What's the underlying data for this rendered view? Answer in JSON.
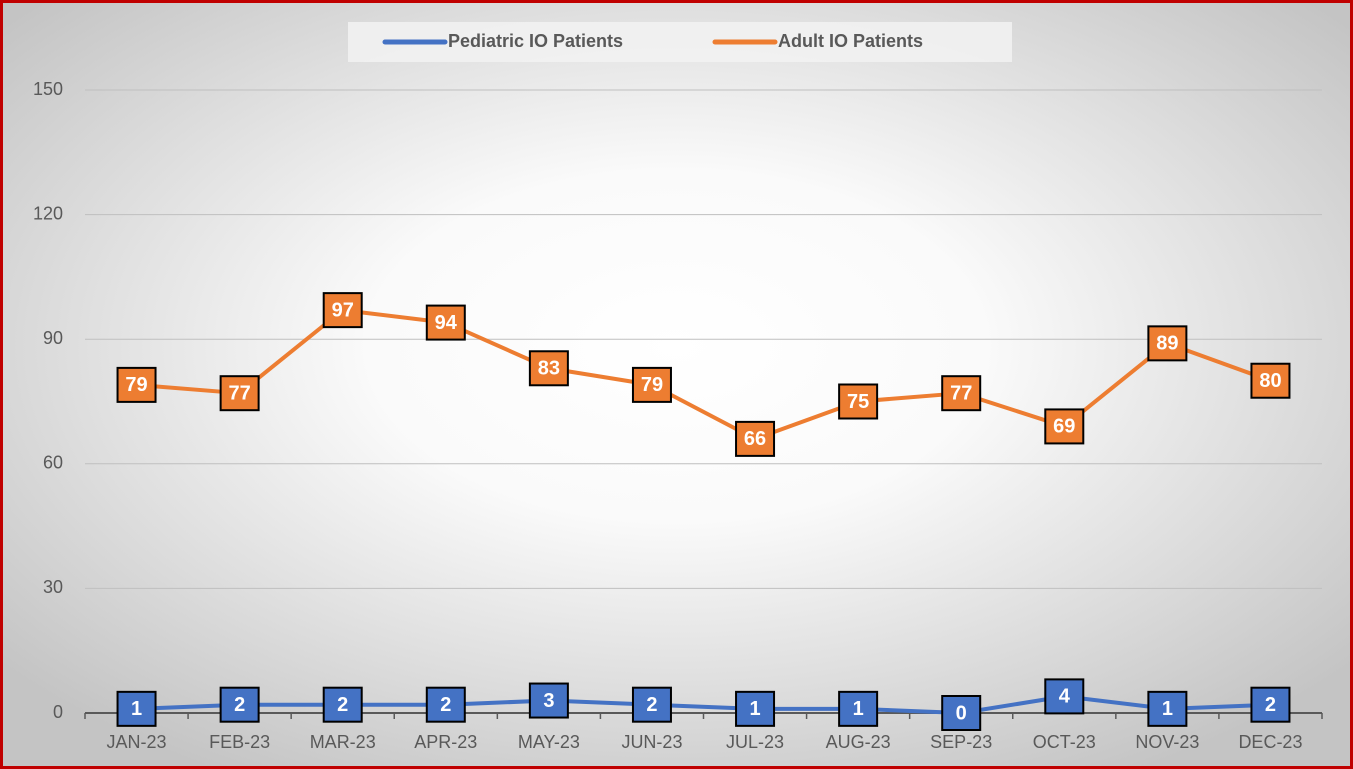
{
  "chart_data": {
    "type": "line",
    "categories": [
      "JAN-23",
      "FEB-23",
      "MAR-23",
      "APR-23",
      "MAY-23",
      "JUN-23",
      "JUL-23",
      "AUG-23",
      "SEP-23",
      "OCT-23",
      "NOV-23",
      "DEC-23"
    ],
    "series": [
      {
        "name": "Pediatric IO Patients",
        "color": "#4472c4",
        "values": [
          1,
          2,
          2,
          2,
          3,
          2,
          1,
          1,
          0,
          4,
          1,
          2
        ]
      },
      {
        "name": "Adult IO Patients",
        "color": "#ed7d31",
        "values": [
          79,
          77,
          97,
          94,
          83,
          79,
          66,
          75,
          77,
          69,
          89,
          80
        ]
      }
    ],
    "ylim": [
      0,
      150
    ],
    "yticks": [
      0,
      30,
      60,
      90,
      120,
      150
    ],
    "grid": true,
    "legend": "top"
  }
}
